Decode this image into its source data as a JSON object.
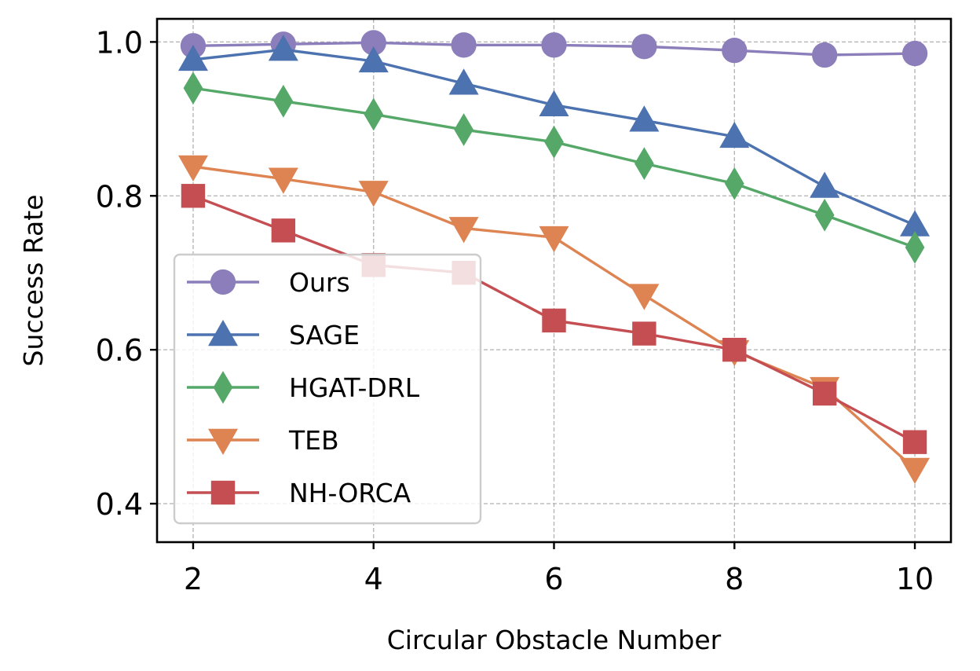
{
  "chart_data": {
    "type": "line",
    "title": "",
    "xlabel": "Circular Obstacle Number",
    "ylabel": "Success Rate",
    "xlim": [
      1.6,
      10.4
    ],
    "ylim": [
      0.35,
      1.03
    ],
    "x": [
      2,
      3,
      4,
      5,
      6,
      7,
      8,
      9,
      10
    ],
    "xticks": [
      2,
      4,
      6,
      8,
      10
    ],
    "xtick_labels": [
      "2",
      "4",
      "6",
      "8",
      "10"
    ],
    "yticks": [
      0.4,
      0.6,
      0.8,
      1.0
    ],
    "ytick_labels": [
      "0.4",
      "0.6",
      "0.8",
      "1.0"
    ],
    "grid": true,
    "legend_position": "lower-left",
    "series": [
      {
        "name": "Ours",
        "color": "#8c7ebb",
        "marker": "circle",
        "values": [
          0.995,
          0.997,
          0.999,
          0.996,
          0.996,
          0.994,
          0.989,
          0.983,
          0.985
        ]
      },
      {
        "name": "SAGE",
        "color": "#4c72b0",
        "marker": "triangle-up",
        "values": [
          0.977,
          0.99,
          0.975,
          0.946,
          0.918,
          0.898,
          0.877,
          0.812,
          0.762
        ]
      },
      {
        "name": "HGAT-DRL",
        "color": "#55a868",
        "marker": "diamond",
        "values": [
          0.94,
          0.923,
          0.906,
          0.886,
          0.87,
          0.842,
          0.816,
          0.775,
          0.733
        ]
      },
      {
        "name": "TEB",
        "color": "#dd8452",
        "marker": "triangle-down",
        "values": [
          0.838,
          0.822,
          0.805,
          0.758,
          0.746,
          0.671,
          0.598,
          0.55,
          0.445
        ]
      },
      {
        "name": "NH-ORCA",
        "color": "#c44e52",
        "marker": "square",
        "values": [
          0.8,
          0.755,
          0.71,
          0.7,
          0.638,
          0.621,
          0.6,
          0.543,
          0.48
        ]
      }
    ]
  }
}
